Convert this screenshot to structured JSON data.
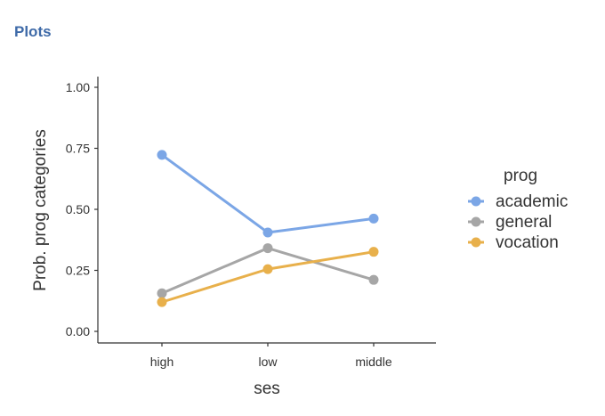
{
  "page": {
    "title": "Plots"
  },
  "chart_data": {
    "type": "line",
    "title": "",
    "xlabel": "ses",
    "ylabel": "Prob. prog categories",
    "categories": [
      "high",
      "low",
      "middle"
    ],
    "ylim": [
      0,
      1
    ],
    "yticks": [
      "0.00",
      "0.25",
      "0.50",
      "0.75",
      "1.00"
    ],
    "ytick_values": [
      0,
      0.25,
      0.5,
      0.75,
      1.0
    ],
    "grid": false,
    "legend": {
      "title": "prog",
      "position": "right"
    },
    "series": [
      {
        "name": "academic",
        "values": [
          0.723,
          0.405,
          0.462
        ],
        "color": "#7ba6e6"
      },
      {
        "name": "general",
        "values": [
          0.156,
          0.341,
          0.211
        ],
        "color": "#a6a6a6"
      },
      {
        "name": "vocation",
        "values": [
          0.12,
          0.255,
          0.326
        ],
        "color": "#e8b04b"
      }
    ]
  }
}
